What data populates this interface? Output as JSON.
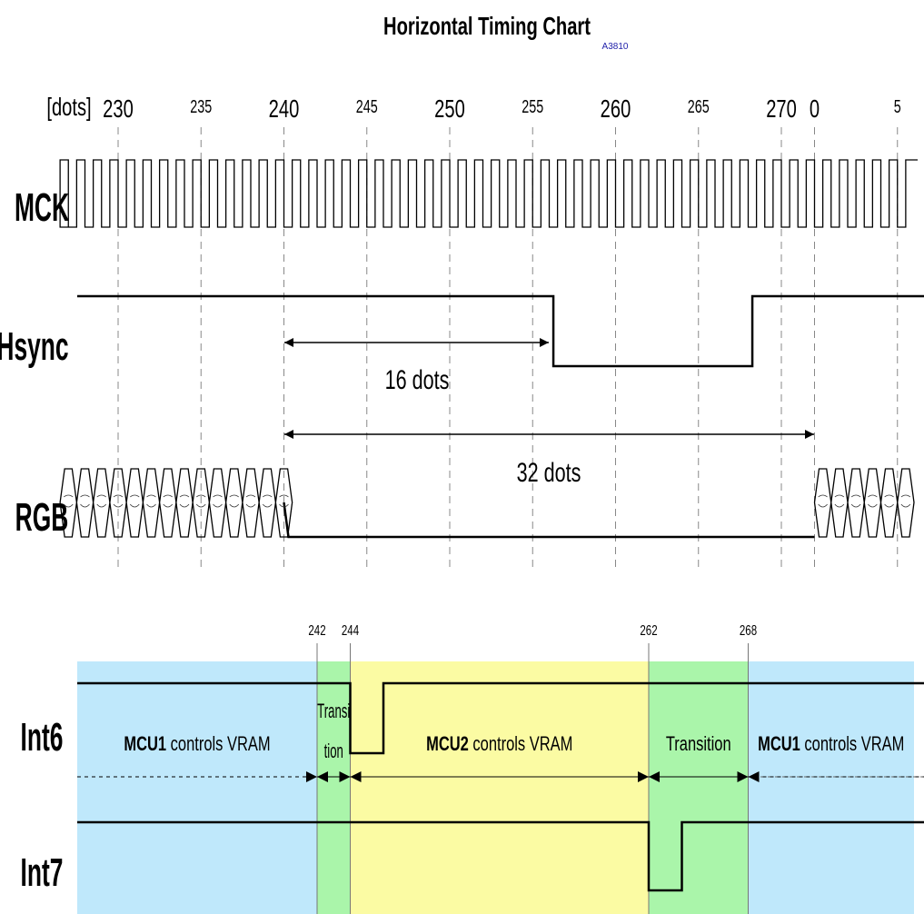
{
  "title": "Horizontal Timing Chart",
  "subtitle": "A3810",
  "axis": {
    "unit_label": "[dots]",
    "ticks": [
      {
        "label": "230",
        "dot": 230,
        "major": true
      },
      {
        "label": "235",
        "dot": 235,
        "major": false
      },
      {
        "label": "240",
        "dot": 240,
        "major": true
      },
      {
        "label": "245",
        "dot": 245,
        "major": false
      },
      {
        "label": "250",
        "dot": 250,
        "major": true
      },
      {
        "label": "255",
        "dot": 255,
        "major": false
      },
      {
        "label": "260",
        "dot": 260,
        "major": true
      },
      {
        "label": "265",
        "dot": 265,
        "major": false
      },
      {
        "label": "270",
        "dot": 270,
        "major": true
      },
      {
        "label": "0",
        "dot": 272,
        "major": true
      },
      {
        "label": "5",
        "dot": 277,
        "major": false
      }
    ]
  },
  "signals": {
    "mck": "MCK",
    "hsync": "Hsync",
    "rgb": "RGB",
    "int6": "Int6",
    "int7": "Int7"
  },
  "measures": {
    "hsync_pulse": "16 dots",
    "blank": "32 dots"
  },
  "markers": [
    {
      "label": "242",
      "dot": 242
    },
    {
      "label": "244",
      "dot": 244
    },
    {
      "label": "262",
      "dot": 262
    },
    {
      "label": "268",
      "dot": 268
    }
  ],
  "regions": [
    {
      "bold": "MCU1",
      "text": " controls VRAM",
      "from": 227,
      "to": 242,
      "color": "#bfe8fb"
    },
    {
      "line1": "Transi",
      "line2": "tion",
      "from": 242,
      "to": 244,
      "color": "#aaf5aa"
    },
    {
      "bold": "MCU2",
      "text": " controls VRAM",
      "from": 244,
      "to": 262,
      "color": "#fbfba3"
    },
    {
      "line1": "Transition",
      "from": 262,
      "to": 268,
      "color": "#aaf5aa"
    },
    {
      "bold": "MCU1",
      "text": " controls VRAM",
      "from": 268,
      "to": 278,
      "color": "#bfe8fb"
    }
  ]
}
